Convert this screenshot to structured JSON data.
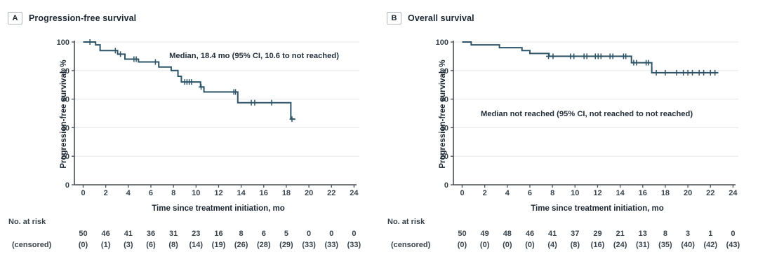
{
  "figure": {
    "colors": {
      "curve": "#2d5468",
      "axis": "#474f57",
      "grid": "#ececec",
      "tick_text": "#38434c",
      "title_text": "#1b2732"
    },
    "panels": [
      {
        "badge": "A",
        "title": "Progression-free survival"
      },
      {
        "badge": "B",
        "title": "Overall survival"
      }
    ],
    "risk_header": {
      "line1": "No. at risk",
      "line2": "(censored)"
    }
  },
  "chart_data": [
    {
      "type": "line",
      "subtype": "kaplan-meier-step",
      "panel": "A",
      "title": "Progression-free survival",
      "annotation": "Median, 18.4 mo (95% CI, 10.6 to not reached)",
      "xlabel": "Time since treatment initiation, mo",
      "ylabel": "Progression-free survival, %",
      "xlim": [
        0,
        24
      ],
      "ylim": [
        0,
        100
      ],
      "xticks": [
        0,
        2,
        4,
        6,
        8,
        10,
        12,
        14,
        16,
        18,
        20,
        22,
        24
      ],
      "yticks": [
        0,
        20,
        40,
        60,
        80,
        100
      ],
      "grid": "horizontal",
      "steps": [
        [
          0,
          100
        ],
        [
          1.1,
          98
        ],
        [
          1.5,
          94
        ],
        [
          3.05,
          91.5
        ],
        [
          3.7,
          88
        ],
        [
          4.9,
          86
        ],
        [
          6.7,
          82.5
        ],
        [
          7.8,
          80
        ],
        [
          8.4,
          76
        ],
        [
          8.7,
          72
        ],
        [
          10.4,
          68.5
        ],
        [
          10.7,
          65
        ],
        [
          13.7,
          57.5
        ],
        [
          18.4,
          46
        ]
      ],
      "curve_end": 18.8,
      "censor_marks": [
        [
          0.6,
          100
        ],
        [
          2.85,
          94
        ],
        [
          3.3,
          91.5
        ],
        [
          4.5,
          88
        ],
        [
          4.7,
          88
        ],
        [
          6.4,
          86
        ],
        [
          9.0,
          72
        ],
        [
          9.2,
          72
        ],
        [
          9.4,
          72
        ],
        [
          9.6,
          72
        ],
        [
          10.45,
          68.5
        ],
        [
          13.35,
          65
        ],
        [
          13.5,
          65
        ],
        [
          14.9,
          57.5
        ],
        [
          15.2,
          57.5
        ],
        [
          16.7,
          57.5
        ],
        [
          18.5,
          46
        ]
      ],
      "risk_table": {
        "at_risk": [
          50,
          46,
          41,
          36,
          31,
          23,
          16,
          8,
          6,
          5,
          0,
          0,
          0
        ],
        "censored": [
          "(0)",
          "(1)",
          "(3)",
          "(6)",
          "(8)",
          "(14)",
          "(19)",
          "(26)",
          "(28)",
          "(29)",
          "(33)",
          "(33)",
          "(33)"
        ]
      }
    },
    {
      "type": "line",
      "subtype": "kaplan-meier-step",
      "panel": "B",
      "title": "Overall survival",
      "annotation": "Median not reached (95% CI, not reached to not reached)",
      "xlabel": "Time since treatment initiation, mo",
      "ylabel": "Progression-free survival, %",
      "xlim": [
        0,
        24
      ],
      "ylim": [
        0,
        100
      ],
      "xticks": [
        0,
        2,
        4,
        6,
        8,
        10,
        12,
        14,
        16,
        18,
        20,
        22,
        24
      ],
      "yticks": [
        0,
        20,
        40,
        60,
        80,
        100
      ],
      "grid": "horizontal",
      "steps": [
        [
          0,
          100
        ],
        [
          0.8,
          98
        ],
        [
          3.3,
          96
        ],
        [
          5.3,
          94
        ],
        [
          6.0,
          92
        ],
        [
          7.7,
          90
        ],
        [
          15.0,
          85.5
        ],
        [
          16.8,
          78.5
        ]
      ],
      "curve_end": 22.7,
      "censor_marks": [
        [
          7.65,
          90
        ],
        [
          8.05,
          90
        ],
        [
          9.6,
          90
        ],
        [
          9.9,
          90
        ],
        [
          10.8,
          90
        ],
        [
          11.05,
          90
        ],
        [
          11.8,
          90
        ],
        [
          12.05,
          90
        ],
        [
          12.3,
          90
        ],
        [
          13.1,
          90
        ],
        [
          13.35,
          90
        ],
        [
          14.3,
          90
        ],
        [
          14.5,
          90
        ],
        [
          15.2,
          85.5
        ],
        [
          15.45,
          85.5
        ],
        [
          16.3,
          85.5
        ],
        [
          16.5,
          85.5
        ],
        [
          17.2,
          78.5
        ],
        [
          18.0,
          78.5
        ],
        [
          19.0,
          78.5
        ],
        [
          19.6,
          78.5
        ],
        [
          20.0,
          78.5
        ],
        [
          20.4,
          78.5
        ],
        [
          21.0,
          78.5
        ],
        [
          21.4,
          78.5
        ],
        [
          22.0,
          78.5
        ],
        [
          22.4,
          78.5
        ]
      ],
      "risk_table": {
        "at_risk": [
          50,
          49,
          48,
          46,
          41,
          37,
          29,
          21,
          13,
          8,
          3,
          1,
          0
        ],
        "censored": [
          "(0)",
          "(0)",
          "(0)",
          "(0)",
          "(4)",
          "(8)",
          "(16)",
          "(24)",
          "(31)",
          "(35)",
          "(40)",
          "(42)",
          "(43)"
        ]
      }
    }
  ]
}
